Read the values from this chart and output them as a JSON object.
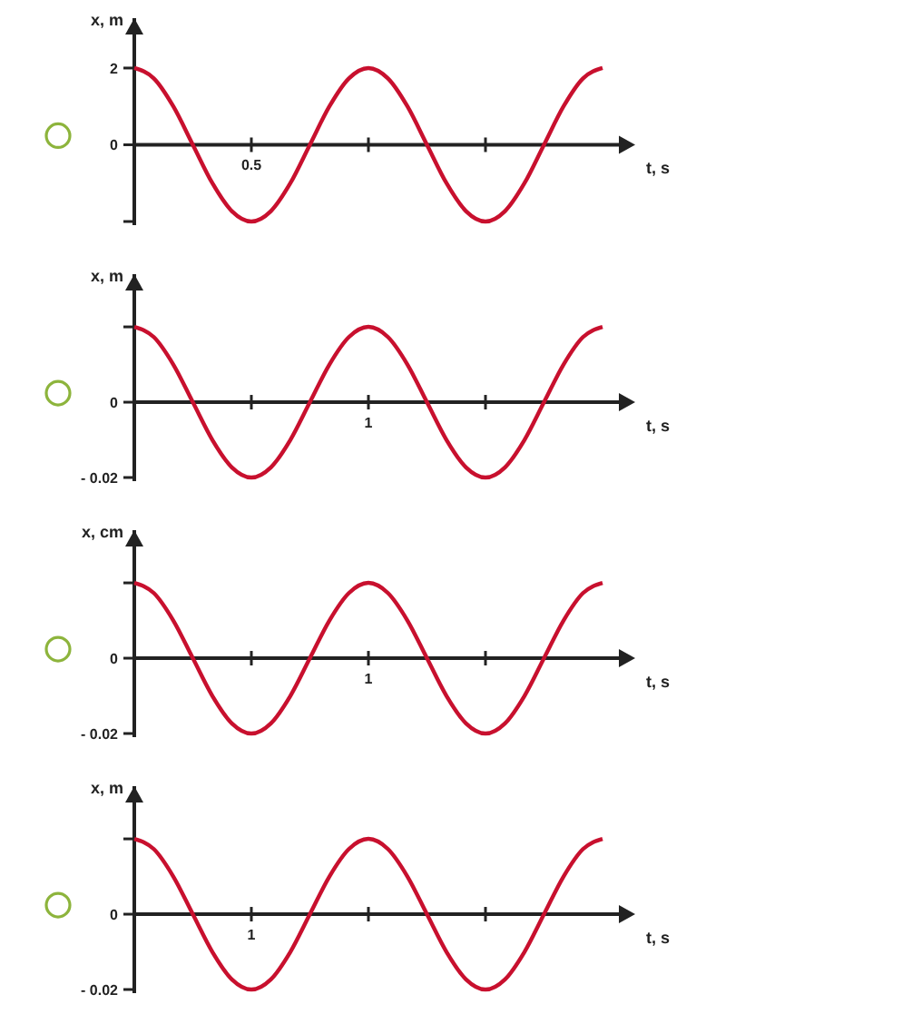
{
  "chart_data": [
    {
      "type": "line",
      "ylabel": "x, m",
      "xlabel": "t, s",
      "categories": [
        null,
        null,
        null,
        null,
        null,
        null,
        "0.5",
        null,
        null,
        null,
        null,
        null,
        null,
        null,
        null,
        null,
        null,
        null,
        null,
        null,
        null,
        null,
        null,
        null,
        null
      ],
      "series": [
        {
          "color": "#c8102e",
          "values": [
            2,
            1.73,
            1,
            0,
            -1,
            -1.73,
            -2,
            -1.73,
            -1,
            0,
            1,
            1.73,
            2,
            1.73,
            1,
            0,
            -1,
            -1.73,
            -2,
            -1.73,
            -1,
            0,
            1,
            1.73,
            2
          ]
        }
      ],
      "ylim": [
        -2,
        3.3
      ],
      "yticks": [
        {
          "value": -2,
          "label": null
        },
        {
          "value": 0,
          "label": "0"
        },
        {
          "value": 2,
          "label": "2"
        }
      ]
    },
    {
      "type": "line",
      "ylabel": "x, m",
      "xlabel": "t, s",
      "categories": [
        null,
        null,
        null,
        null,
        null,
        null,
        null,
        null,
        null,
        null,
        null,
        null,
        "1",
        null,
        null,
        null,
        null,
        null,
        null,
        null,
        null,
        null,
        null,
        null,
        null
      ],
      "series": [
        {
          "color": "#c8102e",
          "values": [
            0.02,
            0.0173,
            0.01,
            0,
            -0.01,
            -0.0173,
            -0.02,
            -0.0173,
            -0.01,
            0,
            0.01,
            0.0173,
            0.02,
            0.0173,
            0.01,
            0,
            -0.01,
            -0.0173,
            -0.02,
            -0.0173,
            -0.01,
            0,
            0.01,
            0.0173,
            0.02
          ]
        }
      ],
      "ylim": [
        -0.02,
        0.034
      ],
      "yticks": [
        {
          "value": -0.02,
          "label": "- 0.02"
        },
        {
          "value": 0,
          "label": "0"
        },
        {
          "value": 0.02,
          "label": null
        }
      ]
    },
    {
      "type": "line",
      "ylabel": "x, cm",
      "xlabel": "t, s",
      "categories": [
        null,
        null,
        null,
        null,
        null,
        null,
        null,
        null,
        null,
        null,
        null,
        null,
        "1",
        null,
        null,
        null,
        null,
        null,
        null,
        null,
        null,
        null,
        null,
        null,
        null
      ],
      "series": [
        {
          "color": "#c8102e",
          "values": [
            0.02,
            0.0173,
            0.01,
            0,
            -0.01,
            -0.0173,
            -0.02,
            -0.0173,
            -0.01,
            0,
            0.01,
            0.0173,
            0.02,
            0.0173,
            0.01,
            0,
            -0.01,
            -0.0173,
            -0.02,
            -0.0173,
            -0.01,
            0,
            0.01,
            0.0173,
            0.02
          ]
        }
      ],
      "ylim": [
        -0.02,
        0.034
      ],
      "yticks": [
        {
          "value": -0.02,
          "label": "- 0.02"
        },
        {
          "value": 0,
          "label": "0"
        },
        {
          "value": 0.02,
          "label": null
        }
      ]
    },
    {
      "type": "line",
      "ylabel": "x, m",
      "xlabel": "t, s",
      "categories": [
        null,
        null,
        null,
        null,
        null,
        null,
        "1",
        null,
        null,
        null,
        null,
        null,
        null,
        null,
        null,
        null,
        null,
        null,
        null,
        null,
        null,
        null,
        null,
        null,
        null
      ],
      "series": [
        {
          "color": "#c8102e",
          "values": [
            0.02,
            0.0173,
            0.01,
            0,
            -0.01,
            -0.0173,
            -0.02,
            -0.0173,
            -0.01,
            0,
            0.01,
            0.0173,
            0.02,
            0.0173,
            0.01,
            0,
            -0.01,
            -0.0173,
            -0.02,
            -0.0173,
            -0.01,
            0,
            0.01,
            0.0173,
            0.02
          ]
        }
      ],
      "ylim": [
        -0.02,
        0.034
      ],
      "yticks": [
        {
          "value": -0.02,
          "label": "- 0.02"
        },
        {
          "value": 0,
          "label": "0"
        },
        {
          "value": 0.02,
          "label": null
        }
      ]
    }
  ]
}
